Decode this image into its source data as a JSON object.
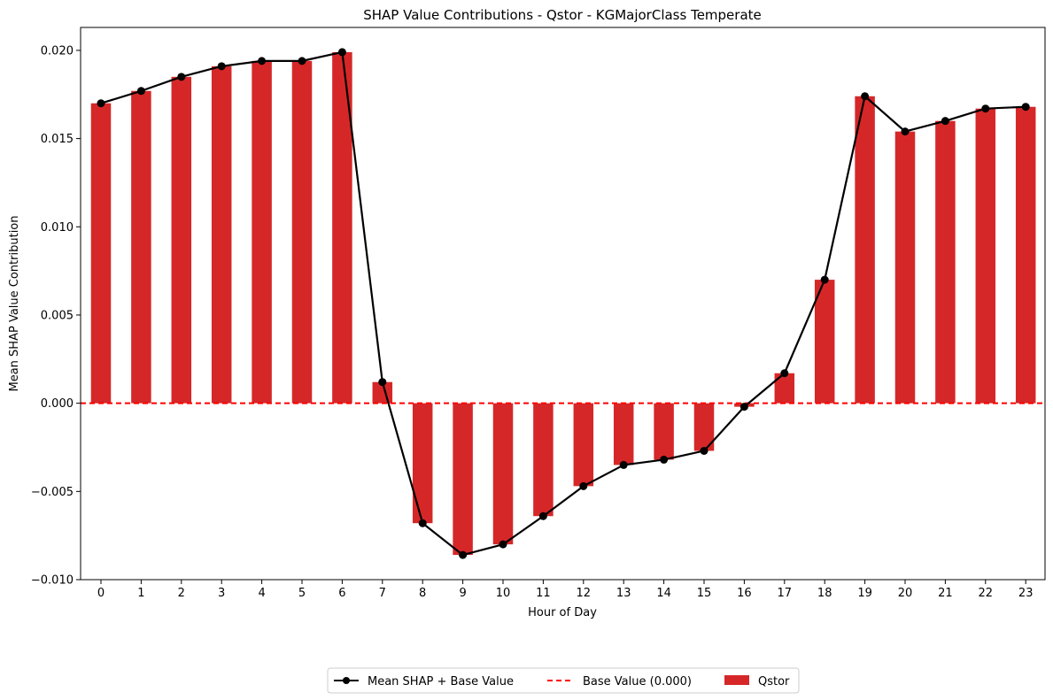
{
  "chart_data": {
    "type": "bar",
    "title": "SHAP Value Contributions - Qstor - KGMajorClass Temperate",
    "xlabel": "Hour of Day",
    "ylabel": "Mean SHAP Value Contribution",
    "ylim": [
      -0.01,
      0.0213
    ],
    "yticks": [
      "−0.010",
      "−0.005",
      "0.000",
      "0.005",
      "0.010",
      "0.015",
      "0.020"
    ],
    "ytick_values": [
      -0.01,
      -0.005,
      0,
      0.005,
      0.01,
      0.015,
      0.02
    ],
    "categories": [
      "0",
      "1",
      "2",
      "3",
      "4",
      "5",
      "6",
      "7",
      "8",
      "9",
      "10",
      "11",
      "12",
      "13",
      "14",
      "15",
      "16",
      "17",
      "18",
      "19",
      "20",
      "21",
      "22",
      "23"
    ],
    "series": [
      {
        "name": "Qstor",
        "kind": "bar",
        "color": "#d62728",
        "values": [
          0.017,
          0.0177,
          0.0185,
          0.0191,
          0.0194,
          0.0194,
          0.0199,
          0.0012,
          -0.0068,
          -0.0086,
          -0.008,
          -0.0064,
          -0.0047,
          -0.0035,
          -0.0032,
          -0.0027,
          -0.0002,
          0.0017,
          0.007,
          0.0174,
          0.0154,
          0.016,
          0.0167,
          0.0168
        ]
      },
      {
        "name": "Mean SHAP + Base Value",
        "kind": "line",
        "color": "#000000",
        "values": [
          0.017,
          0.0177,
          0.0185,
          0.0191,
          0.0194,
          0.0194,
          0.0199,
          0.0012,
          -0.0068,
          -0.0086,
          -0.008,
          -0.0064,
          -0.0047,
          -0.0035,
          -0.0032,
          -0.0027,
          -0.0002,
          0.0017,
          0.007,
          0.0174,
          0.0154,
          0.016,
          0.0167,
          0.0168
        ]
      },
      {
        "name": "Base Value (0.000)",
        "kind": "hline",
        "color": "#ff0000",
        "value": 0.0
      }
    ],
    "grid": false,
    "legend": {
      "placement": "bottom-center",
      "entries": [
        "Mean SHAP + Base Value",
        "Base Value (0.000)",
        "Qstor"
      ]
    }
  }
}
